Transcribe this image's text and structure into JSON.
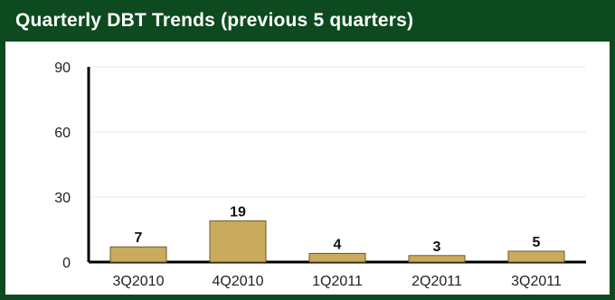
{
  "panel": {
    "title": "Quarterly DBT Trends (previous 5 quarters)"
  },
  "colors": {
    "header_bg": "#0d4a1f",
    "bar_fill": "#c9ab5e",
    "bar_stroke": "#6e5a25",
    "axis": "#000000",
    "grid": "#eaeaea"
  },
  "chart_data": {
    "type": "bar",
    "title": "Quarterly DBT Trends (previous 5 quarters)",
    "categories": [
      "3Q2010",
      "4Q2010",
      "1Q2011",
      "2Q2011",
      "3Q2011"
    ],
    "values": [
      7,
      19,
      4,
      3,
      5
    ],
    "ylim": [
      0,
      90
    ],
    "yticks": [
      "0",
      "30",
      "60",
      "90"
    ],
    "grid": true,
    "legend": "none"
  }
}
